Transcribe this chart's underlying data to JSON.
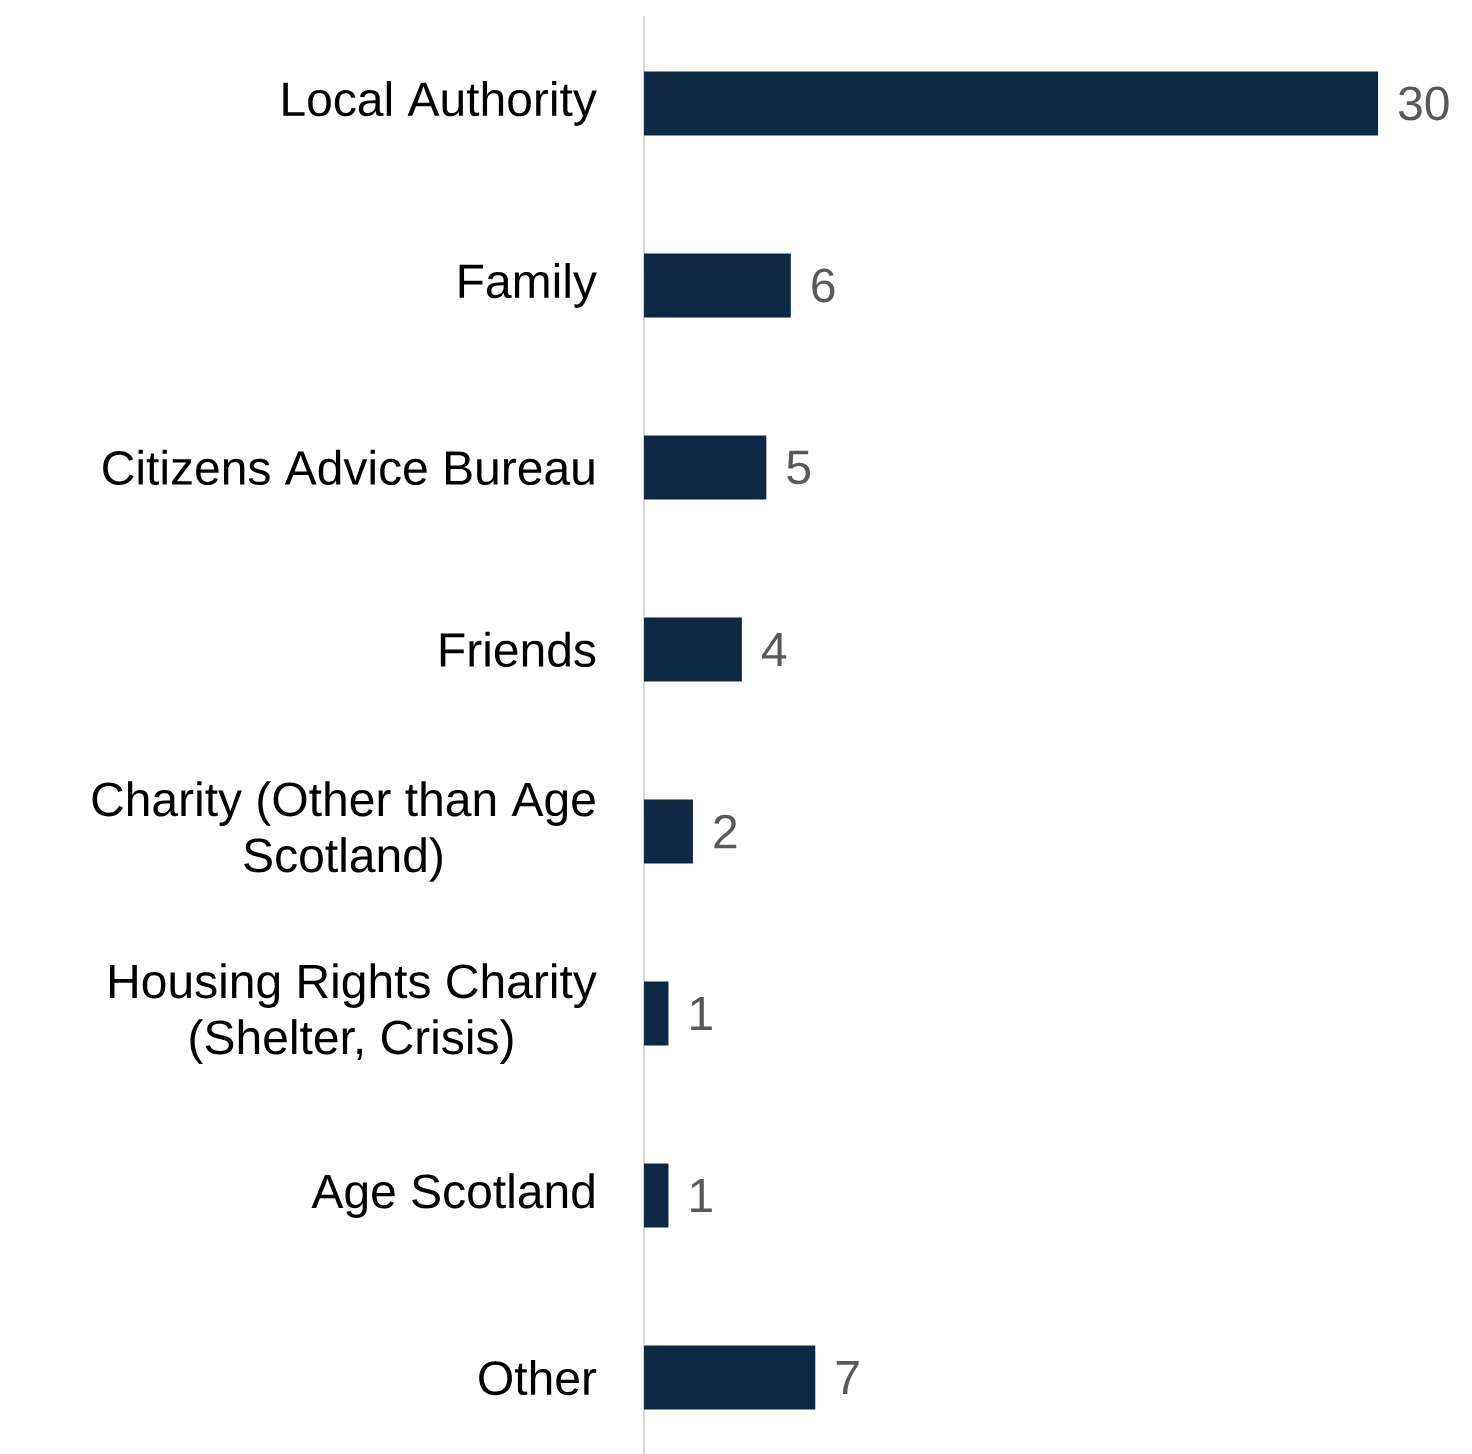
{
  "chart_data": {
    "type": "bar",
    "orientation": "horizontal",
    "categories": [
      "Local Authority",
      "Family",
      "Citizens Advice Bureau",
      "Friends",
      "Charity (Other than Age Scotland)",
      "Housing Rights Charity (Shelter, Crisis)",
      "Age Scotland",
      "Other"
    ],
    "values": [
      30,
      6,
      5,
      4,
      2,
      1,
      1,
      7
    ],
    "color": "#0c2845",
    "data_labels": true
  }
}
